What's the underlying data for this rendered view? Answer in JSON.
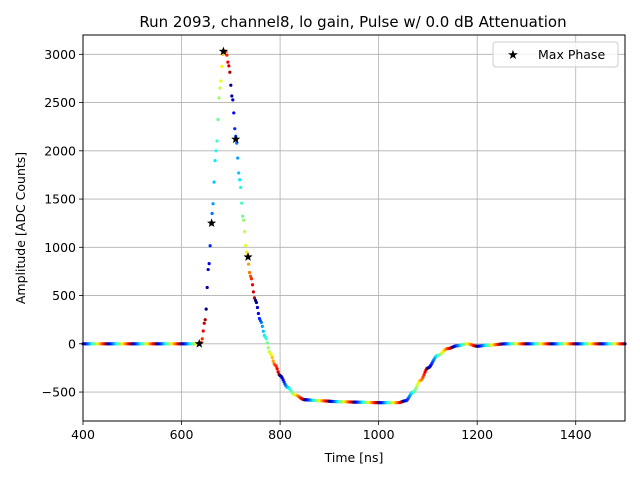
{
  "chart_data": {
    "type": "scatter",
    "title": "Run 2093, channel8, lo gain, Pulse w/ 0.0 dB Attenuation",
    "xlabel": "Time [ns]",
    "ylabel": "Amplitude [ADC Counts]",
    "xlim": [
      400,
      1500
    ],
    "ylim": [
      -800,
      3200
    ],
    "xticks": [
      400,
      600,
      800,
      1000,
      1200,
      1400
    ],
    "xtick_labels": [
      "400",
      "600",
      "800",
      "1000",
      "1200",
      "1400"
    ],
    "yticks": [
      -500,
      0,
      500,
      1000,
      1500,
      2000,
      2500,
      3000
    ],
    "ytick_labels": [
      "−500",
      "0",
      "500",
      "1000",
      "1500",
      "2000",
      "2500",
      "3000"
    ],
    "grid": true,
    "legend": {
      "position": "top-right",
      "entries": [
        "Max Phase"
      ]
    },
    "waveform_phase_colormap": "jet",
    "waveform_samples_per_ns": 0.5,
    "waveform_shape": {
      "x": [
        400,
        630,
        640,
        648,
        655,
        662,
        670,
        678,
        685,
        690,
        696,
        703,
        710,
        718,
        725,
        732,
        740,
        750,
        760,
        770,
        780,
        790,
        800,
        815,
        830,
        850,
        880,
        920,
        960,
        1000,
        1040,
        1055,
        1070,
        1085,
        1100,
        1120,
        1140,
        1160,
        1180,
        1200,
        1220,
        1260,
        1500
      ],
      "y": [
        0,
        0,
        15,
        250,
        800,
        1350,
        2000,
        2650,
        3020,
        3030,
        2880,
        2550,
        2150,
        1700,
        1300,
        950,
        700,
        450,
        240,
        70,
        -100,
        -220,
        -330,
        -450,
        -530,
        -580,
        -590,
        -600,
        -605,
        -610,
        -610,
        -590,
        -500,
        -380,
        -250,
        -120,
        -50,
        -20,
        0,
        -25,
        -15,
        0,
        0
      ]
    },
    "max_phase_points": {
      "name": "Max Phase",
      "x": [
        636,
        661,
        685,
        710,
        735
      ],
      "y": [
        0,
        1250,
        3030,
        2120,
        900
      ]
    }
  }
}
